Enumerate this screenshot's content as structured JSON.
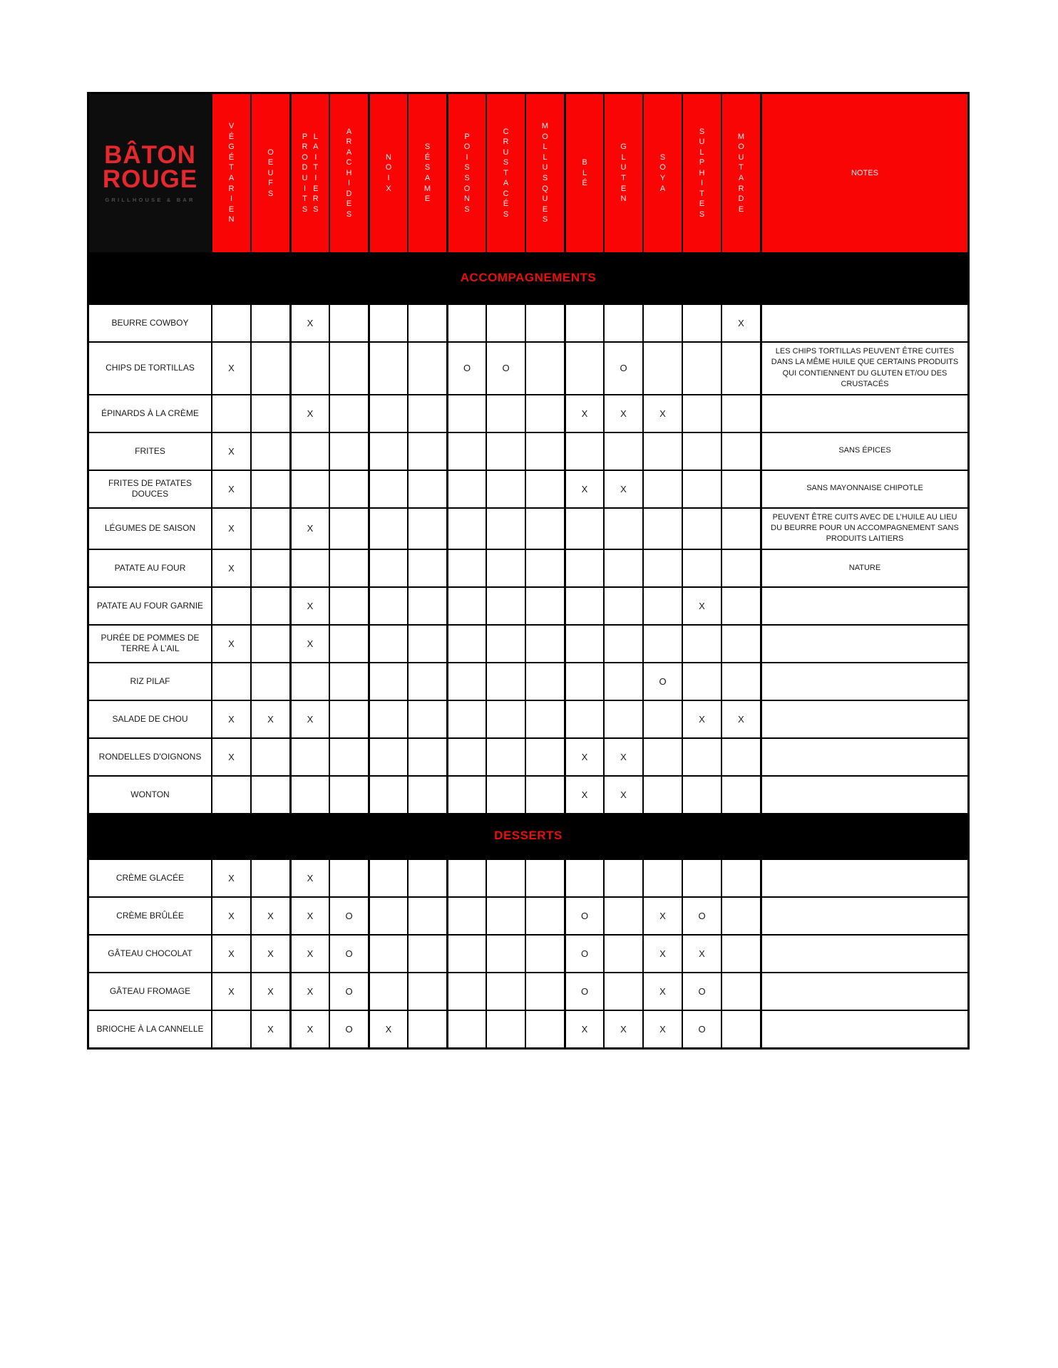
{
  "colors": {
    "header_red": "#fa0505",
    "band_text_red": "#e8100c",
    "logo_red": "#e5282d",
    "header_text": "#ffefef"
  },
  "brand": {
    "title_line1": "BÂTON",
    "title_line2": "ROUGE",
    "subtitle": "GRILLHOUSE & BAR"
  },
  "columns": [
    {
      "label": "VÉGÉTARIEN",
      "words": [
        "VÉGÉTARIEN"
      ],
      "thick_left": false
    },
    {
      "label": "OEUFS",
      "words": [
        "OEUFS"
      ],
      "thick_left": false
    },
    {
      "label": "PRODUITS LAITIERS",
      "words": [
        "PRODUITS",
        "LAITIERS"
      ],
      "thick_left": true
    },
    {
      "label": "ARACHIDES",
      "words": [
        "ARACHIDES"
      ],
      "thick_left": false
    },
    {
      "label": "NOIX",
      "words": [
        "NOIX"
      ],
      "thick_left": true
    },
    {
      "label": "SÉSAME",
      "words": [
        "SÉSAME"
      ],
      "thick_left": false
    },
    {
      "label": "POISSONS",
      "words": [
        "POISSONS"
      ],
      "thick_left": true
    },
    {
      "label": "CRUSTACÉS",
      "words": [
        "CRUSTACÉS"
      ],
      "thick_left": false
    },
    {
      "label": "MOLLUSQUES",
      "words": [
        "MOLLUSQUES"
      ],
      "thick_left": false
    },
    {
      "label": "BLÉ",
      "words": [
        "BLÉ"
      ],
      "thick_left": true
    },
    {
      "label": "GLUTEN",
      "words": [
        "GLUTEN"
      ],
      "thick_left": false
    },
    {
      "label": "SOYA",
      "words": [
        "SOYA"
      ],
      "thick_left": false
    },
    {
      "label": "SULPHITES",
      "words": [
        "SULPHITES"
      ],
      "thick_left": false
    },
    {
      "label": "MOUTARDE",
      "words": [
        "MOUTARDE"
      ],
      "thick_left": false
    }
  ],
  "notes_header": "NOTES",
  "sections": [
    {
      "title": "ACCOMPAGNEMENTS",
      "rows": [
        {
          "name": "BEURRE COWBOY",
          "marks": [
            "",
            "",
            "X",
            "",
            "",
            "",
            "",
            "",
            "",
            "",
            "",
            "",
            "",
            "X"
          ],
          "note": ""
        },
        {
          "name": "CHIPS DE TORTILLAS",
          "marks": [
            "X",
            "",
            "",
            "",
            "",
            "",
            "O",
            "O",
            "",
            "",
            "O",
            "",
            "",
            ""
          ],
          "note": "LES CHIPS TORTILLAS PEUVENT ÊTRE CUITES DANS LA MÊME HUILE QUE CERTAINS PRODUITS QUI CONTIENNENT DU GLUTEN ET/OU DES CRUSTACÉS"
        },
        {
          "name": "ÉPINARDS À LA CRÈME",
          "marks": [
            "",
            "",
            "X",
            "",
            "",
            "",
            "",
            "",
            "",
            "X",
            "X",
            "X",
            "",
            ""
          ],
          "note": ""
        },
        {
          "name": "FRITES",
          "marks": [
            "X",
            "",
            "",
            "",
            "",
            "",
            "",
            "",
            "",
            "",
            "",
            "",
            "",
            ""
          ],
          "note": "SANS ÉPICES"
        },
        {
          "name": "FRITES DE PATATES DOUCES",
          "marks": [
            "X",
            "",
            "",
            "",
            "",
            "",
            "",
            "",
            "",
            "X",
            "X",
            "",
            "",
            ""
          ],
          "note": "SANS MAYONNAISE CHIPOTLE"
        },
        {
          "name": "LÉGUMES DE SAISON",
          "marks": [
            "X",
            "",
            "X",
            "",
            "",
            "",
            "",
            "",
            "",
            "",
            "",
            "",
            "",
            ""
          ],
          "note": "PEUVENT ÊTRE CUITS AVEC DE L’HUILE AU LIEU DU BEURRE POUR UN ACCOMPAGNEMENT SANS PRODUITS LAITIERS"
        },
        {
          "name": "PATATE AU FOUR",
          "marks": [
            "X",
            "",
            "",
            "",
            "",
            "",
            "",
            "",
            "",
            "",
            "",
            "",
            "",
            ""
          ],
          "note": "NATURE"
        },
        {
          "name": "PATATE AU FOUR GARNIE",
          "marks": [
            "",
            "",
            "X",
            "",
            "",
            "",
            "",
            "",
            "",
            "",
            "",
            "",
            "X",
            ""
          ],
          "note": ""
        },
        {
          "name": "PURÉE DE POMMES DE TERRE À L’AIL",
          "marks": [
            "X",
            "",
            "X",
            "",
            "",
            "",
            "",
            "",
            "",
            "",
            "",
            "",
            "",
            ""
          ],
          "note": ""
        },
        {
          "name": "RIZ PILAF",
          "marks": [
            "",
            "",
            "",
            "",
            "",
            "",
            "",
            "",
            "",
            "",
            "",
            "O",
            "",
            ""
          ],
          "note": ""
        },
        {
          "name": "SALADE DE CHOU",
          "marks": [
            "X",
            "X",
            "X",
            "",
            "",
            "",
            "",
            "",
            "",
            "",
            "",
            "",
            "X",
            "X"
          ],
          "note": ""
        },
        {
          "name": "RONDELLES D'OIGNONS",
          "marks": [
            "X",
            "",
            "",
            "",
            "",
            "",
            "",
            "",
            "",
            "X",
            "X",
            "",
            "",
            ""
          ],
          "note": ""
        },
        {
          "name": "WONTON",
          "marks": [
            "",
            "",
            "",
            "",
            "",
            "",
            "",
            "",
            "",
            "X",
            "X",
            "",
            "",
            ""
          ],
          "note": ""
        }
      ]
    },
    {
      "title": "DESSERTS",
      "rows": [
        {
          "name": "CRÈME GLACÉE",
          "marks": [
            "X",
            "",
            "X",
            "",
            "",
            "",
            "",
            "",
            "",
            "",
            "",
            "",
            "",
            ""
          ],
          "note": ""
        },
        {
          "name": "CRÈME BRÛLÉE",
          "marks": [
            "X",
            "X",
            "X",
            "O",
            "",
            "",
            "",
            "",
            "",
            "O",
            "",
            "X",
            "O",
            ""
          ],
          "note": ""
        },
        {
          "name": "GÂTEAU CHOCOLAT",
          "marks": [
            "X",
            "X",
            "X",
            "O",
            "",
            "",
            "",
            "",
            "",
            "O",
            "",
            "X",
            "X",
            ""
          ],
          "note": ""
        },
        {
          "name": "GÂTEAU  FROMAGE",
          "marks": [
            "X",
            "X",
            "X",
            "O",
            "",
            "",
            "",
            "",
            "",
            "O",
            "",
            "X",
            "O",
            ""
          ],
          "note": ""
        },
        {
          "name": "BRIOCHE À LA CANNELLE",
          "marks": [
            "",
            "X",
            "X",
            "O",
            "X",
            "",
            "",
            "",
            "",
            "X",
            "X",
            "X",
            "O",
            ""
          ],
          "note": ""
        }
      ]
    }
  ]
}
